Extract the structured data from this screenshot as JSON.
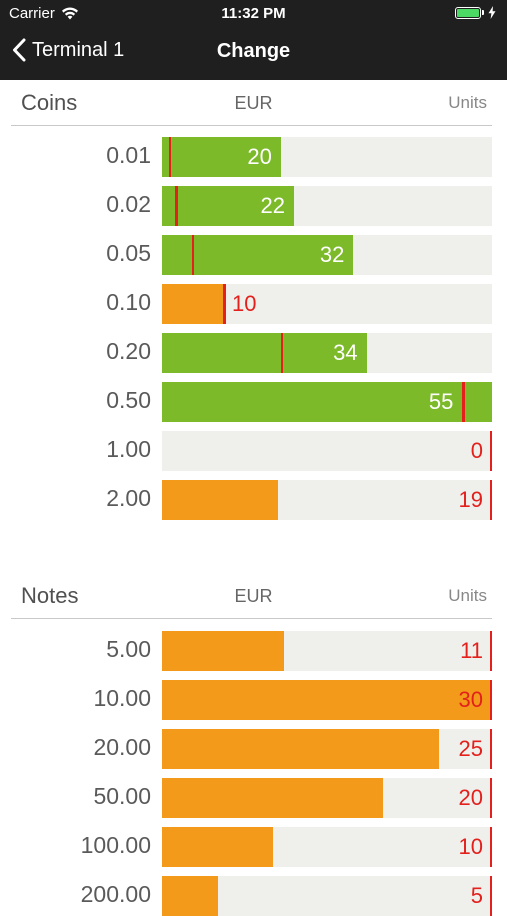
{
  "status": {
    "carrier": "Carrier",
    "time": "11:32 PM"
  },
  "nav": {
    "back_label": "Terminal 1",
    "title": "Change"
  },
  "colors": {
    "green": "#7cba2a",
    "orange": "#f39a1a",
    "marker": "#e3201c"
  },
  "coins": {
    "title": "Coins",
    "currency": "EUR",
    "units_label": "Units",
    "rows": [
      {
        "denomination": "0.01",
        "count": "20",
        "fill_percent": 36,
        "marker_percent": 2,
        "status": "green"
      },
      {
        "denomination": "0.02",
        "count": "22",
        "fill_percent": 40,
        "marker_percent": 4,
        "status": "green"
      },
      {
        "denomination": "0.05",
        "count": "32",
        "fill_percent": 58,
        "marker_percent": 9,
        "status": "green"
      },
      {
        "denomination": "0.10",
        "count": "10",
        "fill_percent": 18.5,
        "marker_percent": 18.5,
        "status": "orange"
      },
      {
        "denomination": "0.20",
        "count": "34",
        "fill_percent": 62,
        "marker_percent": 36,
        "status": "green"
      },
      {
        "denomination": "0.50",
        "count": "55",
        "fill_percent": 100,
        "marker_percent": 91,
        "status": "green"
      },
      {
        "denomination": "1.00",
        "count": "0",
        "fill_percent": 0,
        "marker_percent": 100,
        "status": "orange"
      },
      {
        "denomination": "2.00",
        "count": "19",
        "fill_percent": 35,
        "marker_percent": 100,
        "status": "orange"
      }
    ]
  },
  "notes": {
    "title": "Notes",
    "currency": "EUR",
    "units_label": "Units",
    "rows": [
      {
        "denomination": "5.00",
        "count": "11",
        "fill_percent": 37,
        "marker_percent": 100,
        "status": "orange"
      },
      {
        "denomination": "10.00",
        "count": "30",
        "fill_percent": 100,
        "marker_percent": 100,
        "status": "orange"
      },
      {
        "denomination": "20.00",
        "count": "25",
        "fill_percent": 84,
        "marker_percent": 100,
        "status": "orange"
      },
      {
        "denomination": "50.00",
        "count": "20",
        "fill_percent": 67,
        "marker_percent": 100,
        "status": "orange"
      },
      {
        "denomination": "100.00",
        "count": "10",
        "fill_percent": 33.5,
        "marker_percent": 100,
        "status": "orange"
      },
      {
        "denomination": "200.00",
        "count": "5",
        "fill_percent": 17,
        "marker_percent": 100,
        "status": "orange"
      }
    ]
  }
}
